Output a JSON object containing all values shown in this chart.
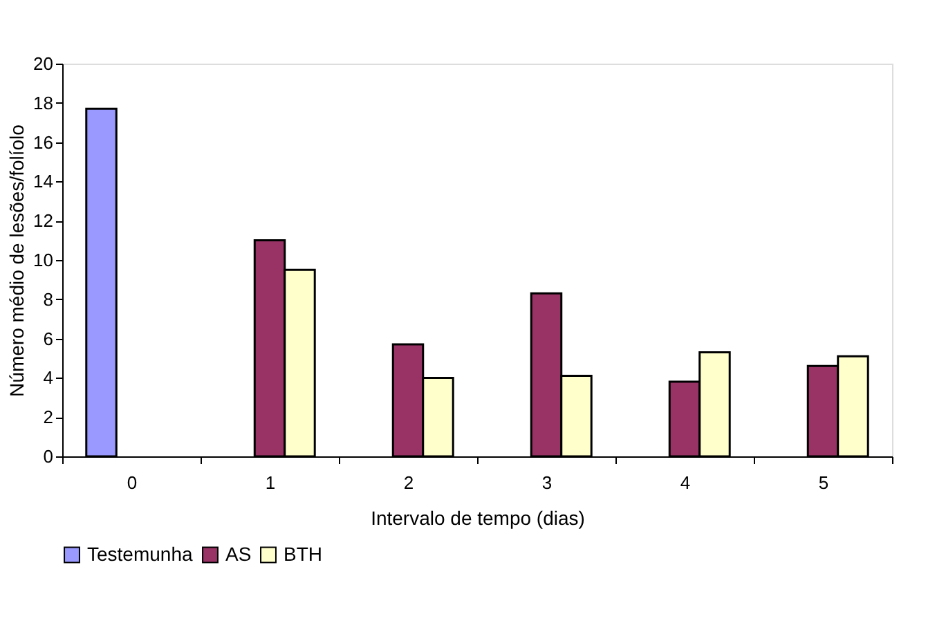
{
  "chart_data": {
    "type": "bar",
    "xlabel": "Intervalo de tempo (dias)",
    "ylabel": "Número médio de lesões/folíolo",
    "categories": [
      "0",
      "1",
      "2",
      "3",
      "4",
      "5"
    ],
    "series": [
      {
        "name": "Testemunha",
        "color": "#9999ff",
        "values": [
          17.7,
          null,
          null,
          null,
          null,
          null
        ]
      },
      {
        "name": "AS",
        "color": "#993366",
        "values": [
          null,
          11.0,
          5.7,
          8.3,
          3.8,
          4.6
        ]
      },
      {
        "name": "BTH",
        "color": "#ffffcc",
        "values": [
          null,
          9.5,
          4.0,
          4.1,
          5.3,
          5.1
        ]
      }
    ],
    "ylim": [
      0,
      20
    ],
    "yticks": [
      0,
      2,
      4,
      6,
      8,
      10,
      12,
      14,
      16,
      18,
      20
    ],
    "grid": false,
    "legend": "bottom"
  }
}
